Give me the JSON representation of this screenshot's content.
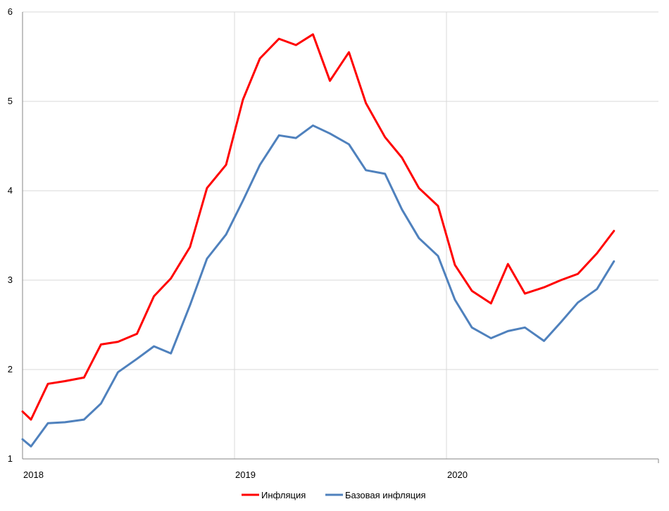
{
  "chart_data": {
    "type": "line",
    "title": "",
    "xlabel": "",
    "ylabel": "",
    "ylim": [
      1,
      6
    ],
    "xlim": [
      2018.0,
      2021.0
    ],
    "grid": true,
    "legend_position": "bottom",
    "y_ticks": [
      "1",
      "2",
      "3",
      "4",
      "5",
      "6"
    ],
    "x_ticks": [
      {
        "value": 2018,
        "label": "2018"
      },
      {
        "value": 2019,
        "label": "2019"
      },
      {
        "value": 2020,
        "label": "2020"
      }
    ],
    "series": [
      {
        "name": "Инфляция",
        "color": "#ff0000",
        "points": [
          [
            2018.0,
            1.53
          ],
          [
            2018.04,
            1.44
          ],
          [
            2018.12,
            1.84
          ],
          [
            2018.2,
            1.87
          ],
          [
            2018.29,
            1.91
          ],
          [
            2018.37,
            2.28
          ],
          [
            2018.45,
            2.31
          ],
          [
            2018.54,
            2.4
          ],
          [
            2018.62,
            2.82
          ],
          [
            2018.7,
            3.02
          ],
          [
            2018.79,
            3.37
          ],
          [
            2018.87,
            4.03
          ],
          [
            2018.96,
            4.29
          ],
          [
            2019.04,
            5.02
          ],
          [
            2019.12,
            5.48
          ],
          [
            2019.21,
            5.7
          ],
          [
            2019.29,
            5.63
          ],
          [
            2019.37,
            5.75
          ],
          [
            2019.45,
            5.23
          ],
          [
            2019.54,
            5.55
          ],
          [
            2019.62,
            4.98
          ],
          [
            2019.71,
            4.6
          ],
          [
            2019.79,
            4.37
          ],
          [
            2019.87,
            4.03
          ],
          [
            2019.96,
            3.83
          ],
          [
            2020.04,
            3.17
          ],
          [
            2020.12,
            2.88
          ],
          [
            2020.21,
            2.74
          ],
          [
            2020.29,
            3.18
          ],
          [
            2020.37,
            2.85
          ],
          [
            2020.46,
            2.92
          ],
          [
            2020.54,
            3.0
          ],
          [
            2020.62,
            3.07
          ],
          [
            2020.71,
            3.3
          ],
          [
            2020.79,
            3.55
          ]
        ]
      },
      {
        "name": "Базовая инфляция",
        "color": "#4f81bd",
        "points": [
          [
            2018.0,
            1.22
          ],
          [
            2018.04,
            1.14
          ],
          [
            2018.12,
            1.4
          ],
          [
            2018.2,
            1.41
          ],
          [
            2018.29,
            1.44
          ],
          [
            2018.37,
            1.62
          ],
          [
            2018.45,
            1.97
          ],
          [
            2018.54,
            2.12
          ],
          [
            2018.62,
            2.26
          ],
          [
            2018.7,
            2.18
          ],
          [
            2018.79,
            2.72
          ],
          [
            2018.87,
            3.24
          ],
          [
            2018.96,
            3.51
          ],
          [
            2019.04,
            3.89
          ],
          [
            2019.12,
            4.29
          ],
          [
            2019.21,
            4.62
          ],
          [
            2019.29,
            4.59
          ],
          [
            2019.37,
            4.73
          ],
          [
            2019.45,
            4.64
          ],
          [
            2019.54,
            4.52
          ],
          [
            2019.62,
            4.23
          ],
          [
            2019.71,
            4.19
          ],
          [
            2019.79,
            3.79
          ],
          [
            2019.87,
            3.47
          ],
          [
            2019.96,
            3.27
          ],
          [
            2020.04,
            2.78
          ],
          [
            2020.12,
            2.47
          ],
          [
            2020.21,
            2.35
          ],
          [
            2020.29,
            2.43
          ],
          [
            2020.37,
            2.47
          ],
          [
            2020.46,
            2.32
          ],
          [
            2020.54,
            2.53
          ],
          [
            2020.62,
            2.75
          ],
          [
            2020.71,
            2.9
          ],
          [
            2020.79,
            3.21
          ]
        ]
      }
    ]
  }
}
